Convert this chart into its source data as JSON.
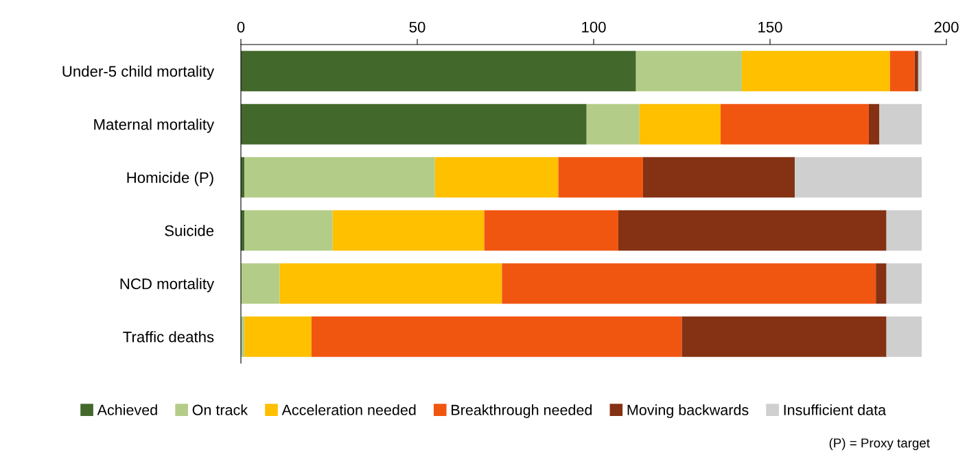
{
  "chart_data": {
    "type": "bar",
    "orientation": "horizontal",
    "stacked": true,
    "categories": [
      "Under-5 child mortality",
      "Maternal mortality",
      "Homicide (P)",
      "Suicide",
      "NCD mortality",
      "Traffic deaths"
    ],
    "series": [
      {
        "name": "Achieved",
        "color": "#43682b",
        "values": [
          112,
          98,
          1,
          1,
          0,
          0
        ]
      },
      {
        "name": "On track",
        "color": "#b3cd88",
        "values": [
          30,
          15,
          54,
          25,
          11,
          1
        ]
      },
      {
        "name": "Acceleration needed",
        "color": "#ffc000",
        "values": [
          42,
          23,
          35,
          43,
          63,
          19
        ]
      },
      {
        "name": "Breakthrough needed",
        "color": "#f15611",
        "values": [
          7,
          42,
          24,
          38,
          106,
          105
        ]
      },
      {
        "name": "Moving backwards",
        "color": "#843213",
        "values": [
          1,
          3,
          43,
          76,
          3,
          58
        ]
      },
      {
        "name": "Insufficient data",
        "color": "#cfcfcf",
        "values": [
          1,
          12,
          36,
          10,
          10,
          10
        ]
      }
    ],
    "xlim": [
      0,
      200
    ],
    "xticks": [
      0,
      50,
      100,
      150,
      200
    ],
    "grid": false,
    "legend": "bottom",
    "annotations": [
      "(P) = Proxy target"
    ]
  }
}
